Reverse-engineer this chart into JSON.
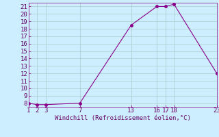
{
  "x": [
    1,
    2,
    3,
    7,
    13,
    16,
    17,
    18,
    23
  ],
  "y": [
    8.0,
    7.8,
    7.8,
    8.0,
    18.5,
    21.0,
    21.0,
    21.3,
    12.0
  ],
  "line_color": "#8b008b",
  "marker_color": "#8b008b",
  "background_color": "#cceeff",
  "grid_color": "#aacccc",
  "tick_label_color": "#660066",
  "xlabel": "Windchill (Refroidissement éolien,°C)",
  "xlabel_color": "#660066",
  "xlim": [
    1,
    23
  ],
  "ylim": [
    7.5,
    21.5
  ],
  "yticks": [
    8,
    9,
    10,
    11,
    12,
    13,
    14,
    15,
    16,
    17,
    18,
    19,
    20,
    21
  ],
  "xticks": [
    1,
    2,
    3,
    7,
    13,
    16,
    17,
    18,
    23
  ],
  "marker_size": 2.5,
  "line_width": 0.8,
  "font_size": 6.5,
  "xlabel_font_size": 6.5
}
